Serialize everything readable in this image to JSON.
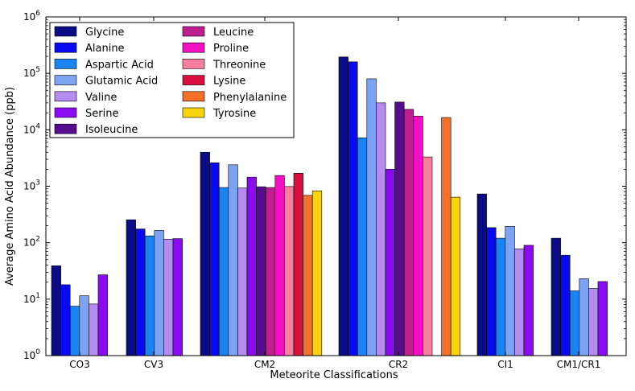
{
  "chart_data": {
    "type": "bar",
    "scale": "log",
    "title": "",
    "xlabel": "Meteorite Classifications",
    "ylabel": "Average Amino Acid Abundance (ppb)",
    "ylim": [
      1,
      1000000
    ],
    "yticks": [
      {
        "value": 1,
        "base": "10",
        "exp": "0"
      },
      {
        "value": 10,
        "base": "10",
        "exp": "1"
      },
      {
        "value": 100,
        "base": "10",
        "exp": "2"
      },
      {
        "value": 1000,
        "base": "10",
        "exp": "3"
      },
      {
        "value": 10000,
        "base": "10",
        "exp": "4"
      },
      {
        "value": 100000,
        "base": "10",
        "exp": "5"
      },
      {
        "value": 1000000,
        "base": "10",
        "exp": "6"
      }
    ],
    "legend_position": "top-left",
    "categories": [
      "CO3",
      "CV3",
      "CM2",
      "CR2",
      "CI1",
      "CM1/CR1"
    ],
    "series": [
      {
        "name": "Glycine",
        "color": "#0b0b86",
        "values": [
          39,
          255,
          4000,
          195000,
          730,
          120
        ]
      },
      {
        "name": "Alanine",
        "color": "#0a0af2",
        "values": [
          18,
          175,
          2600,
          160000,
          185,
          60
        ]
      },
      {
        "name": "Aspartic Acid",
        "color": "#1a85f2",
        "values": [
          7.5,
          132,
          950,
          7200,
          120,
          14
        ]
      },
      {
        "name": "Glutamic Acid",
        "color": "#7ea3f2",
        "values": [
          11.5,
          165,
          2400,
          80000,
          195,
          23
        ]
      },
      {
        "name": "Valine",
        "color": "#b58cf0",
        "values": [
          8.2,
          115,
          930,
          30000,
          78,
          15.5
        ]
      },
      {
        "name": "Serine",
        "color": "#8a0af2",
        "values": [
          27,
          118,
          1450,
          2000,
          90,
          20.5
        ]
      },
      {
        "name": "Isoleucine",
        "color": "#550d8e",
        "values": [
          null,
          null,
          980,
          31000,
          null,
          null
        ]
      },
      {
        "name": "Leucine",
        "color": "#bf1e8f",
        "values": [
          null,
          null,
          950,
          23000,
          null,
          null
        ]
      },
      {
        "name": "Proline",
        "color": "#f211c2",
        "values": [
          null,
          null,
          1550,
          17500,
          null,
          null
        ]
      },
      {
        "name": "Threonine",
        "color": "#f57fa1",
        "values": [
          null,
          null,
          990,
          3300,
          null,
          null
        ]
      },
      {
        "name": "Lysine",
        "color": "#d9103f",
        "values": [
          null,
          null,
          1700,
          null,
          null,
          null
        ]
      },
      {
        "name": "Phenylalanine",
        "color": "#f5702a",
        "values": [
          null,
          null,
          690,
          16500,
          null,
          null
        ]
      },
      {
        "name": "Tyrosine",
        "color": "#f7d40b",
        "values": [
          null,
          null,
          830,
          640,
          null,
          null
        ]
      }
    ]
  }
}
